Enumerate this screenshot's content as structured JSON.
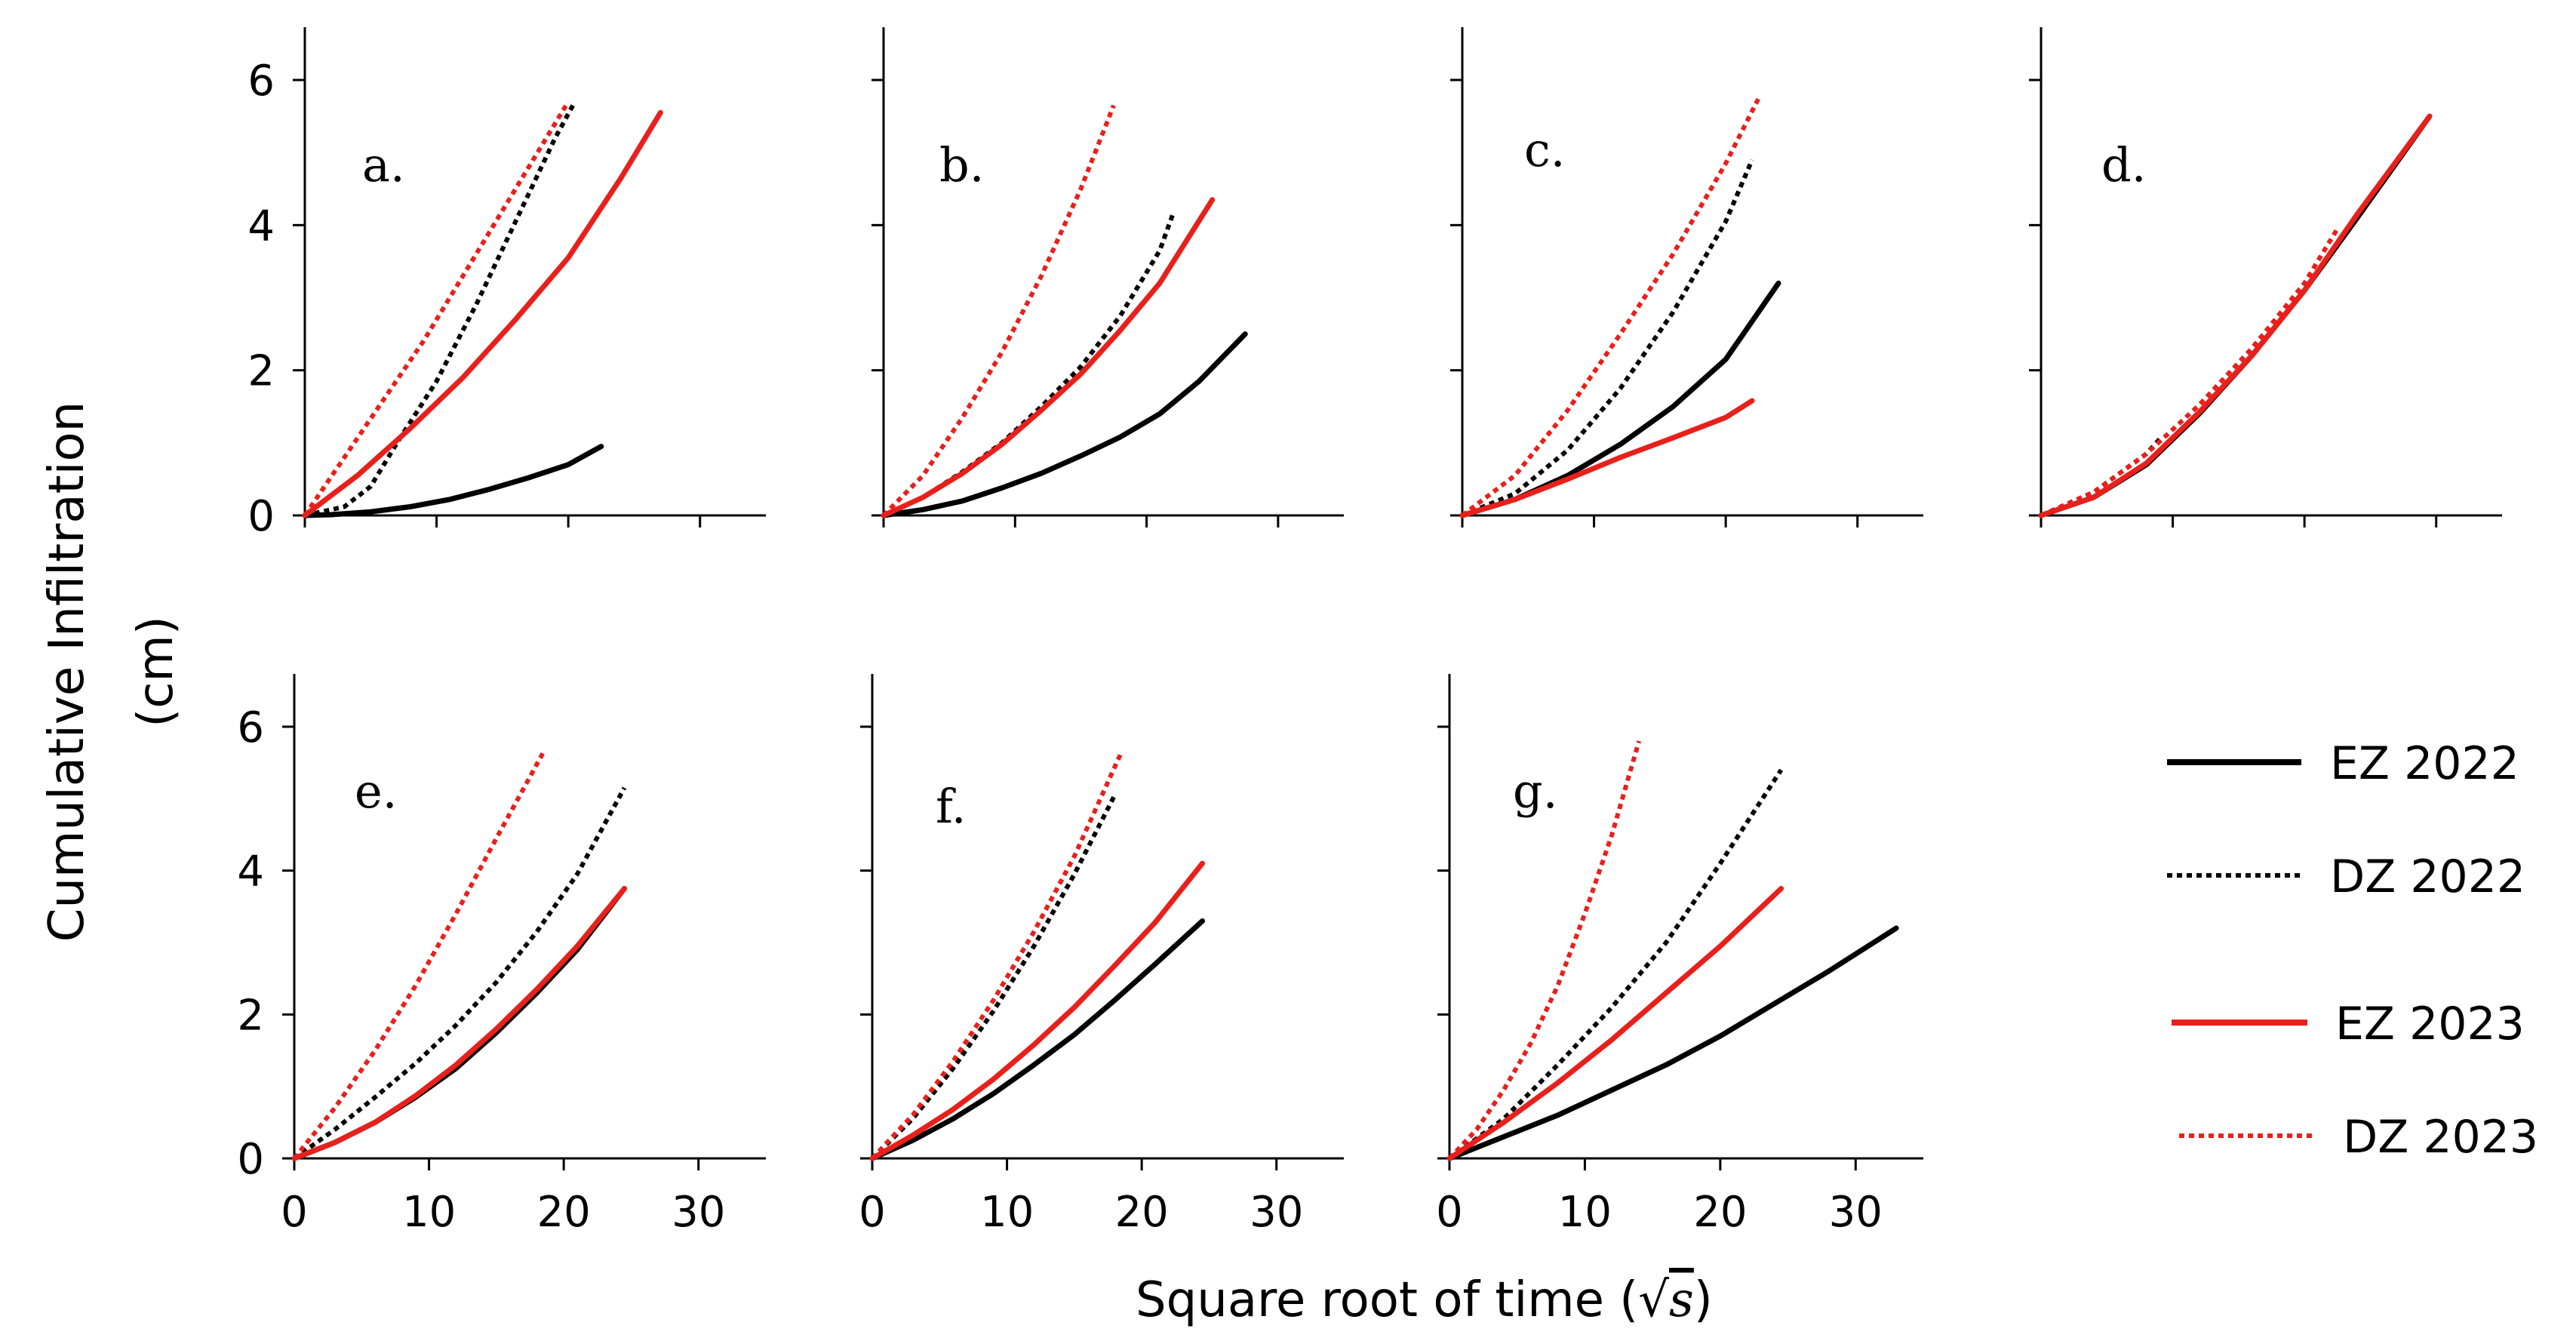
{
  "chart_data": {
    "type": "line",
    "ylabel_line1": "Cumulative Infiltration",
    "ylabel_line2": "(cm)",
    "xlabel_main": "Square root of time (",
    "xlabel_sqrt": "√",
    "xlabel_var": "s",
    "xlabel_close": ")",
    "xlim": [
      0,
      35
    ],
    "ylim": [
      0,
      6.5
    ],
    "x_ticks": [
      0,
      10,
      20,
      30
    ],
    "y_ticks": [
      0,
      2,
      4,
      6
    ],
    "series_styles": {
      "EZ 2022": {
        "color": "#000000",
        "dashed": false
      },
      "DZ 2022": {
        "color": "#000000",
        "dashed": true
      },
      "EZ 2023": {
        "color": "#e8201c",
        "dashed": false
      },
      "DZ 2023": {
        "color": "#e8201c",
        "dashed": true
      }
    },
    "legend": {
      "placement": "bottom-right",
      "entries": [
        "EZ 2022",
        "DZ 2022",
        "EZ 2023",
        "DZ 2023"
      ]
    },
    "panels": [
      {
        "label": "a.",
        "show_ytick_labels": true,
        "show_xtick_labels": false,
        "series": [
          {
            "name": "EZ 2022",
            "x": [
              0,
              2,
              5,
              8,
              11,
              14,
              17,
              20,
              22.5
            ],
            "y": [
              0,
              0.01,
              0.05,
              0.12,
              0.22,
              0.36,
              0.52,
              0.7,
              0.95
            ]
          },
          {
            "name": "DZ 2022",
            "x": [
              0,
              3,
              5,
              7,
              10,
              13,
              16,
              19,
              20.5
            ],
            "y": [
              0,
              0.12,
              0.4,
              1.0,
              1.85,
              2.9,
              4.05,
              5.2,
              5.7
            ]
          },
          {
            "name": "EZ 2023",
            "x": [
              0,
              4,
              8,
              12,
              16,
              20,
              24,
              27
            ],
            "y": [
              0,
              0.55,
              1.2,
              1.9,
              2.7,
              3.55,
              4.65,
              5.55
            ]
          },
          {
            "name": "DZ 2023",
            "x": [
              0,
              3,
              6,
              9,
              12,
              15,
              18,
              20
            ],
            "y": [
              0,
              0.8,
              1.6,
              2.4,
              3.3,
              4.2,
              5.1,
              5.7
            ]
          }
        ]
      },
      {
        "label": "b.",
        "show_ytick_labels": false,
        "show_xtick_labels": false,
        "series": [
          {
            "name": "EZ 2022",
            "x": [
              0,
              3,
              6,
              9,
              12,
              15,
              18,
              21,
              24,
              27.5
            ],
            "y": [
              0,
              0.08,
              0.2,
              0.38,
              0.58,
              0.82,
              1.08,
              1.4,
              1.85,
              2.5
            ]
          },
          {
            "name": "DZ 2022",
            "x": [
              0,
              3,
              6,
              9,
              12,
              15,
              18,
              21,
              22
            ],
            "y": [
              0,
              0.25,
              0.6,
              1.0,
              1.5,
              2.05,
              2.75,
              3.65,
              4.15
            ]
          },
          {
            "name": "EZ 2023",
            "x": [
              0,
              3,
              6,
              9,
              12,
              15,
              18,
              21,
              25
            ],
            "y": [
              0,
              0.25,
              0.58,
              0.98,
              1.45,
              1.95,
              2.55,
              3.2,
              4.35
            ]
          },
          {
            "name": "DZ 2023",
            "x": [
              0,
              3,
              6,
              9,
              12,
              15,
              17.5
            ],
            "y": [
              0,
              0.55,
              1.35,
              2.25,
              3.3,
              4.5,
              5.65
            ]
          }
        ]
      },
      {
        "label": "c.",
        "show_ytick_labels": false,
        "show_xtick_labels": false,
        "series": [
          {
            "name": "EZ 2022",
            "x": [
              0,
              4,
              8,
              12,
              16,
              20,
              24
            ],
            "y": [
              0,
              0.22,
              0.55,
              0.98,
              1.5,
              2.15,
              3.2
            ]
          },
          {
            "name": "DZ 2022",
            "x": [
              0,
              4,
              8,
              12,
              16,
              20,
              22
            ],
            "y": [
              0,
              0.3,
              0.9,
              1.75,
              2.8,
              4.05,
              4.9
            ]
          },
          {
            "name": "EZ 2023",
            "x": [
              0,
              4,
              8,
              12,
              16,
              20,
              22
            ],
            "y": [
              0,
              0.22,
              0.5,
              0.8,
              1.07,
              1.35,
              1.58
            ]
          },
          {
            "name": "DZ 2023",
            "x": [
              0,
              4,
              8,
              12,
              16,
              20,
              22.5
            ],
            "y": [
              0,
              0.55,
              1.45,
              2.5,
              3.6,
              4.85,
              5.75
            ]
          }
        ]
      },
      {
        "label": "d.",
        "show_ytick_labels": false,
        "show_xtick_labels": false,
        "series": [
          {
            "name": "EZ 2022",
            "x": [
              0,
              4,
              8,
              12,
              16,
              20,
              24,
              29.5
            ],
            "y": [
              0,
              0.25,
              0.7,
              1.4,
              2.2,
              3.1,
              4.1,
              5.5
            ]
          },
          {
            "name": "DZ 2022",
            "x": [
              0,
              4,
              8,
              9
            ],
            "y": [
              0,
              0.32,
              0.85,
              1.05
            ]
          },
          {
            "name": "EZ 2023",
            "x": [
              0,
              4,
              8,
              12,
              16,
              20,
              24,
              29.5
            ],
            "y": [
              0,
              0.25,
              0.72,
              1.42,
              2.2,
              3.1,
              4.15,
              5.5
            ]
          },
          {
            "name": "DZ 2023",
            "x": [
              0,
              4,
              8,
              12,
              16,
              20,
              22.5
            ],
            "y": [
              0,
              0.32,
              0.85,
              1.52,
              2.3,
              3.2,
              3.95
            ]
          }
        ]
      },
      {
        "label": "e.",
        "show_ytick_labels": true,
        "show_xtick_labels": true,
        "series": [
          {
            "name": "EZ 2022",
            "x": [
              0,
              3,
              6,
              9,
              12,
              15,
              18,
              21,
              24.5
            ],
            "y": [
              0,
              0.22,
              0.5,
              0.85,
              1.25,
              1.75,
              2.3,
              2.9,
              3.75
            ]
          },
          {
            "name": "DZ 2022",
            "x": [
              0,
              3,
              6,
              9,
              12,
              15,
              18,
              21,
              24.5
            ],
            "y": [
              0,
              0.4,
              0.85,
              1.32,
              1.85,
              2.45,
              3.15,
              3.95,
              5.15
            ]
          },
          {
            "name": "EZ 2023",
            "x": [
              0,
              3,
              6,
              9,
              12,
              15,
              18,
              21,
              24.5
            ],
            "y": [
              0,
              0.22,
              0.5,
              0.87,
              1.3,
              1.8,
              2.35,
              2.95,
              3.75
            ]
          },
          {
            "name": "DZ 2023",
            "x": [
              0,
              3,
              6,
              9,
              12,
              15,
              18.5
            ],
            "y": [
              0,
              0.7,
              1.5,
              2.4,
              3.4,
              4.45,
              5.65
            ]
          }
        ]
      },
      {
        "label": "f.",
        "show_ytick_labels": false,
        "show_xtick_labels": true,
        "series": [
          {
            "name": "EZ 2022",
            "x": [
              0,
              3,
              6,
              9,
              12,
              15,
              18,
              21,
              24.5
            ],
            "y": [
              0,
              0.25,
              0.55,
              0.9,
              1.3,
              1.72,
              2.2,
              2.7,
              3.3
            ]
          },
          {
            "name": "DZ 2022",
            "x": [
              0,
              3,
              6,
              9,
              12,
              15,
              18
            ],
            "y": [
              0,
              0.55,
              1.25,
              2.05,
              2.95,
              3.95,
              5.05
            ]
          },
          {
            "name": "EZ 2023",
            "x": [
              0,
              3,
              6,
              9,
              12,
              15,
              18,
              21,
              24.5
            ],
            "y": [
              0,
              0.32,
              0.68,
              1.1,
              1.58,
              2.1,
              2.68,
              3.28,
              4.1
            ]
          },
          {
            "name": "DZ 2023",
            "x": [
              0,
              3,
              6,
              9,
              12,
              15,
              18.5
            ],
            "y": [
              0,
              0.6,
              1.35,
              2.2,
              3.15,
              4.2,
              5.65
            ]
          }
        ]
      },
      {
        "label": "g.",
        "show_ytick_labels": false,
        "show_xtick_labels": true,
        "series": [
          {
            "name": "EZ 2022",
            "x": [
              0,
              4,
              8,
              12,
              16,
              20,
              24,
              28,
              33
            ],
            "y": [
              0,
              0.3,
              0.6,
              0.95,
              1.3,
              1.7,
              2.15,
              2.6,
              3.2
            ]
          },
          {
            "name": "DZ 2022",
            "x": [
              0,
              4,
              8,
              12,
              16,
              20,
              24.5
            ],
            "y": [
              0,
              0.55,
              1.3,
              2.1,
              3.0,
              4.1,
              5.4
            ]
          },
          {
            "name": "EZ 2023",
            "x": [
              0,
              4,
              8,
              12,
              16,
              20,
              24.5
            ],
            "y": [
              0,
              0.5,
              1.05,
              1.65,
              2.3,
              2.95,
              3.75
            ]
          },
          {
            "name": "DZ 2023",
            "x": [
              0,
              2,
              4,
              6,
              8,
              10,
              12,
              14
            ],
            "y": [
              0,
              0.4,
              0.95,
              1.6,
              2.4,
              3.4,
              4.5,
              5.8
            ]
          }
        ]
      }
    ]
  }
}
